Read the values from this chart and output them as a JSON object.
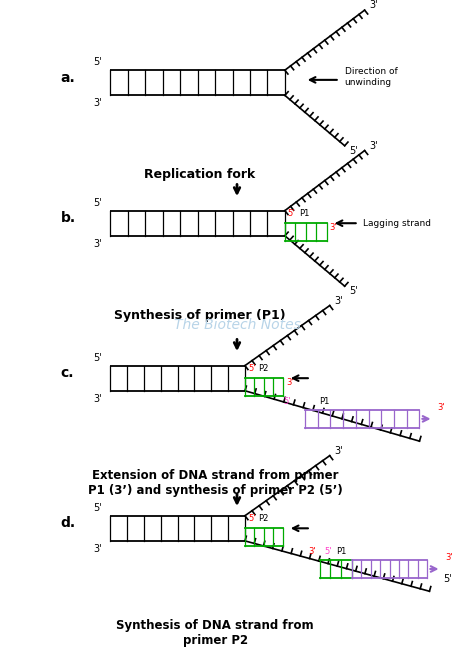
{
  "bg_color": "#ffffff",
  "watermark": "The Biotech Notes",
  "watermark_color": "#b8d4e8",
  "captions": [
    "Replication fork",
    "Synthesis of primer (P1)",
    "Extension of DNA strand from primer\nP1 (3’) and synthesis of primer P2 (5’)",
    "Synthesis of DNA strand from\nprimer P2"
  ],
  "strand_color": "#000000",
  "primer_green": "#00aa00",
  "primer_purple": "#9966cc",
  "label_red": "#ff0000",
  "label_pink": "#ff44cc"
}
